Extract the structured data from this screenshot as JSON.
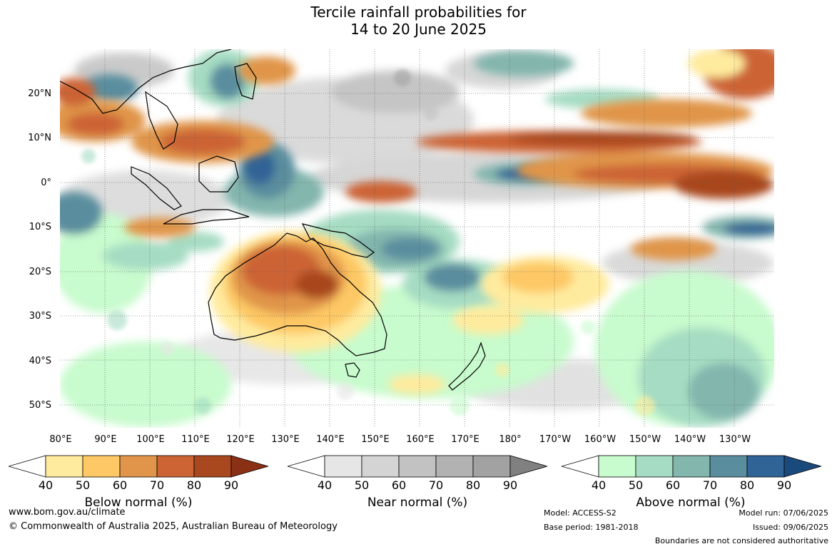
{
  "title": {
    "line1": "Tercile rainfall probabilities for",
    "line2": "14 to 20 June 2025"
  },
  "lat_labels": [
    "20°N",
    "10°N",
    "0°",
    "10°S",
    "20°S",
    "30°S",
    "40°S",
    "50°S"
  ],
  "lon_labels": [
    "80°E",
    "90°E",
    "100°E",
    "110°E",
    "120°E",
    "130°E",
    "140°E",
    "150°E",
    "160°E",
    "170°E",
    "180°",
    "170°W",
    "160°W",
    "150°W",
    "140°W",
    "130°W"
  ],
  "legends": [
    {
      "title": "Below normal (%)",
      "ticks": [
        "40",
        "50",
        "60",
        "70",
        "80",
        "90"
      ],
      "colors": [
        "#ffffff",
        "#ffeb9e",
        "#fdc865",
        "#e0954a",
        "#cc6434",
        "#a9471f",
        "#8a3014"
      ]
    },
    {
      "title": "Near normal (%)",
      "ticks": [
        "40",
        "50",
        "60",
        "70",
        "80",
        "90"
      ],
      "colors": [
        "#ffffff",
        "#e6e6e6",
        "#d4d4d4",
        "#c2c2c2",
        "#b2b2b2",
        "#a2a2a2",
        "#808080"
      ]
    },
    {
      "title": "Above normal (%)",
      "ticks": [
        "40",
        "50",
        "60",
        "70",
        "80",
        "90"
      ],
      "colors": [
        "#ffffff",
        "#c8fbcd",
        "#a6dcc3",
        "#83b6ad",
        "#5a8e9f",
        "#316496",
        "#1a4a7c"
      ]
    }
  ],
  "footer": {
    "website": "www.bom.gov.au/climate",
    "copyright": "© Commonwealth of Australia 2025, Australian Bureau of Meteorology",
    "model": "Model: ACCESS-S2",
    "base_period": "Base period: 1981-2018",
    "model_run": "Model run: 07/06/2025",
    "issued": "Issued: 09/06/2025",
    "boundaries": "Boundaries are not considered authoritative"
  }
}
